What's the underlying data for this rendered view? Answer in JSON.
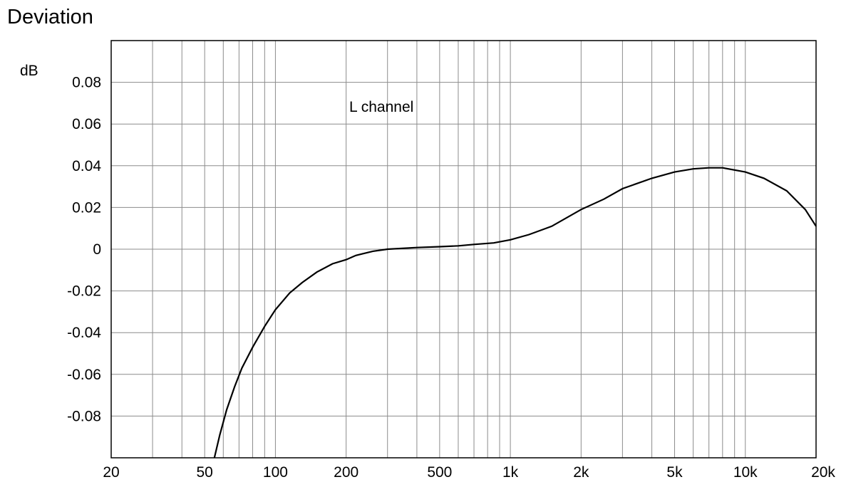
{
  "chart_data": {
    "type": "line",
    "title": "Deviation",
    "ylabel": "dB",
    "xlabel": "",
    "xscale": "log",
    "xlim": [
      20,
      20000
    ],
    "ylim": [
      -0.1,
      0.1
    ],
    "grid": true,
    "annotation": "L channel",
    "x_ticks": [
      {
        "value": 20,
        "label": "20"
      },
      {
        "value": 50,
        "label": "50"
      },
      {
        "value": 100,
        "label": "100"
      },
      {
        "value": 200,
        "label": "200"
      },
      {
        "value": 500,
        "label": "500"
      },
      {
        "value": 1000,
        "label": "1k"
      },
      {
        "value": 2000,
        "label": "2k"
      },
      {
        "value": 5000,
        "label": "5k"
      },
      {
        "value": 10000,
        "label": "10k"
      },
      {
        "value": 20000,
        "label": "20k"
      }
    ],
    "y_ticks": [
      {
        "value": 0.08,
        "label": "0.08"
      },
      {
        "value": 0.06,
        "label": "0.06"
      },
      {
        "value": 0.04,
        "label": "0.04"
      },
      {
        "value": 0.02,
        "label": "0.02"
      },
      {
        "value": 0,
        "label": "0"
      },
      {
        "value": -0.02,
        "label": "-0.02"
      },
      {
        "value": -0.04,
        "label": "-0.04"
      },
      {
        "value": -0.06,
        "label": "-0.06"
      },
      {
        "value": -0.08,
        "label": "-0.08"
      }
    ],
    "series": [
      {
        "color": "#000000",
        "points": [
          [
            55,
            -0.1
          ],
          [
            58,
            -0.089
          ],
          [
            62,
            -0.077
          ],
          [
            67,
            -0.066
          ],
          [
            72,
            -0.057
          ],
          [
            80,
            -0.047
          ],
          [
            90,
            -0.037
          ],
          [
            100,
            -0.029
          ],
          [
            115,
            -0.021
          ],
          [
            130,
            -0.016
          ],
          [
            150,
            -0.011
          ],
          [
            175,
            -0.007
          ],
          [
            200,
            -0.005
          ],
          [
            220,
            -0.003
          ],
          [
            260,
            -0.001
          ],
          [
            300,
            0.0
          ],
          [
            400,
            0.0008
          ],
          [
            500,
            0.0012
          ],
          [
            600,
            0.0016
          ],
          [
            700,
            0.0023
          ],
          [
            850,
            0.003
          ],
          [
            1000,
            0.0045
          ],
          [
            1200,
            0.007
          ],
          [
            1500,
            0.011
          ],
          [
            2000,
            0.019
          ],
          [
            2500,
            0.024
          ],
          [
            3000,
            0.029
          ],
          [
            4000,
            0.034
          ],
          [
            5000,
            0.037
          ],
          [
            6000,
            0.0385
          ],
          [
            7000,
            0.039
          ],
          [
            8000,
            0.039
          ],
          [
            10000,
            0.037
          ],
          [
            12000,
            0.034
          ],
          [
            15000,
            0.028
          ],
          [
            18000,
            0.019
          ],
          [
            20000,
            0.011
          ]
        ]
      }
    ]
  }
}
